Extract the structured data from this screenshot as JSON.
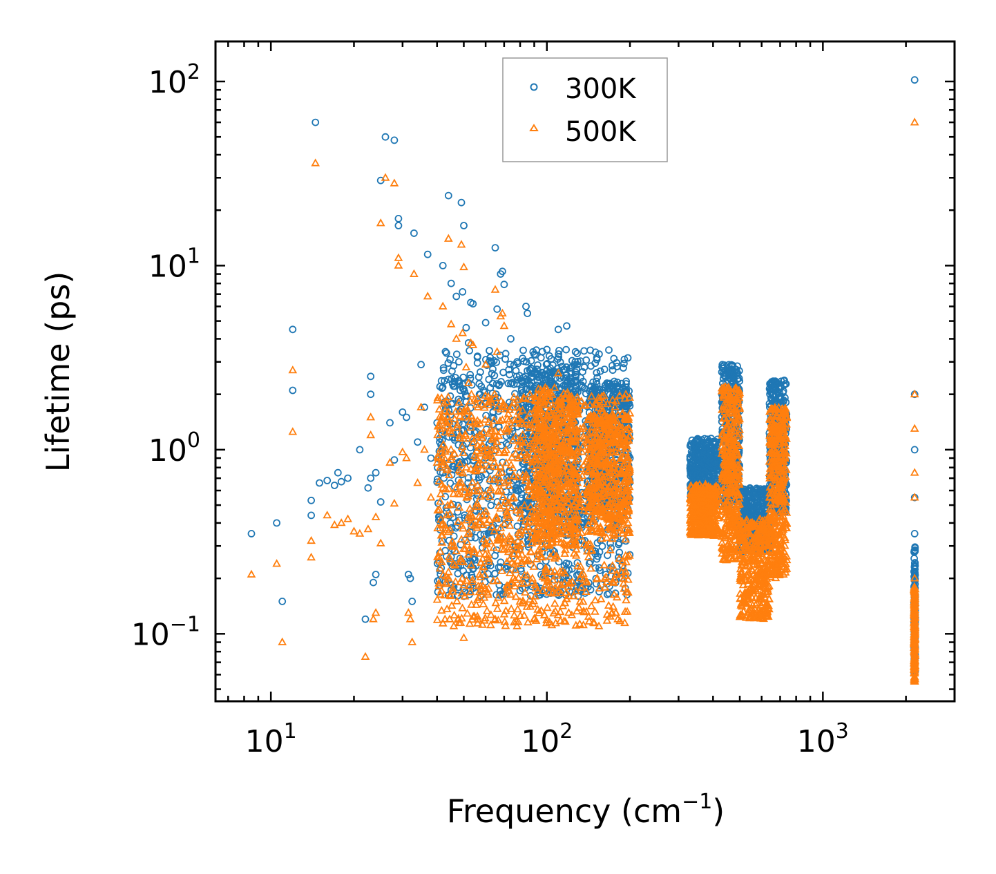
{
  "chart_data": {
    "type": "scatter",
    "title": "",
    "xlabel": "Frequency (cm",
    "xlabel_sup": "−1",
    "xlabel_end": ")",
    "ylabel": "Lifetime (ps)",
    "xscale": "log",
    "yscale": "log",
    "xlim": [
      6.3,
      3000
    ],
    "ylim": [
      0.043,
      165
    ],
    "x_ticks": [
      {
        "base": "10",
        "exp": "1",
        "value": 10
      },
      {
        "base": "10",
        "exp": "2",
        "value": 100
      },
      {
        "base": "10",
        "exp": "3",
        "value": 1000
      }
    ],
    "y_ticks": [
      {
        "base": "10",
        "exp": "2",
        "value": 100
      },
      {
        "base": "10",
        "exp": "1",
        "value": 10
      },
      {
        "base": "10",
        "exp": "0",
        "value": 1
      },
      {
        "base": "10",
        "exp": "−1",
        "value": 0.1
      }
    ],
    "legend": {
      "placement": "top-center"
    },
    "series": [
      {
        "name": "300K",
        "marker": "circle",
        "color": "#1f77b4",
        "points": [
          [
            8.5,
            0.35
          ],
          [
            10.5,
            0.4
          ],
          [
            11,
            0.15
          ],
          [
            12,
            4.5
          ],
          [
            12,
            2.1
          ],
          [
            14,
            0.53
          ],
          [
            14,
            0.44
          ],
          [
            14.5,
            60
          ],
          [
            15,
            0.66
          ],
          [
            16,
            0.68
          ],
          [
            17,
            0.64
          ],
          [
            17.5,
            0.75
          ],
          [
            18,
            0.67
          ],
          [
            19,
            0.7
          ],
          [
            21,
            1.0
          ],
          [
            22,
            0.12
          ],
          [
            22.5,
            0.62
          ],
          [
            23,
            2.5
          ],
          [
            23,
            2.0
          ],
          [
            23,
            0.7
          ],
          [
            23.5,
            0.19
          ],
          [
            24,
            0.21
          ],
          [
            24,
            0.75
          ],
          [
            25,
            0.52
          ],
          [
            25,
            29
          ],
          [
            26,
            50
          ],
          [
            27,
            1.4
          ],
          [
            28,
            48
          ],
          [
            28,
            0.88
          ],
          [
            29,
            18
          ],
          [
            29,
            16.5
          ],
          [
            30,
            1.6
          ],
          [
            31,
            1.5
          ],
          [
            31.5,
            0.21
          ],
          [
            32,
            0.2
          ],
          [
            32.5,
            0.15
          ],
          [
            33,
            15
          ],
          [
            34,
            1.1
          ],
          [
            35,
            2.9
          ],
          [
            36,
            1.7
          ],
          [
            37,
            11.5
          ],
          [
            38,
            0.9
          ],
          [
            40,
            1.4
          ],
          [
            41,
            2.2
          ],
          [
            42,
            10
          ],
          [
            44,
            24
          ],
          [
            45,
            8
          ],
          [
            46,
            0.18
          ],
          [
            47,
            6.8
          ],
          [
            48,
            3.0
          ],
          [
            49,
            22
          ],
          [
            49.5,
            7.2
          ],
          [
            50,
            0.16
          ],
          [
            50,
            16.5
          ],
          [
            51,
            4.6
          ],
          [
            52,
            3.8
          ],
          [
            53,
            6.3
          ],
          [
            54,
            6.2
          ],
          [
            57,
            2.0
          ],
          [
            60,
            4.9
          ],
          [
            63,
            3.0
          ],
          [
            65,
            12.5
          ],
          [
            66,
            5.8
          ],
          [
            68,
            9.0
          ],
          [
            69,
            9.3
          ],
          [
            70,
            7.9
          ],
          [
            74,
            4.0
          ],
          [
            78,
            3.0
          ],
          [
            80,
            0.75
          ],
          [
            84,
            6.0
          ],
          [
            85,
            5.5
          ],
          [
            90,
            3.3
          ],
          [
            100,
            3.5
          ],
          [
            110,
            4.5
          ],
          [
            118,
            4.7
          ],
          [
            135,
            2.2
          ],
          [
            150,
            1.9
          ],
          [
            165,
            2.3
          ],
          [
            180,
            2.0
          ],
          [
            190,
            0.8
          ],
          [
            200,
            0.9
          ],
          [
            2150,
            102
          ],
          [
            2150,
            2.0
          ],
          [
            2150,
            1.0
          ],
          [
            2150,
            0.55
          ],
          [
            2150,
            0.35
          ],
          [
            2150,
            0.2
          ],
          [
            2150,
            0.1
          ]
        ],
        "bands": [
          {
            "x": [
              40,
              200
            ],
            "y": [
              0.16,
              3.5
            ],
            "n": 1100
          },
          {
            "x": [
              80,
              130
            ],
            "y": [
              0.4,
              2.8
            ],
            "n": 450
          },
          {
            "x": [
              140,
              200
            ],
            "y": [
              0.5,
              2.3
            ],
            "n": 350
          },
          {
            "x": [
              330,
              420
            ],
            "y": [
              0.55,
              1.15
            ],
            "n": 380
          },
          {
            "x": [
              430,
              500
            ],
            "y": [
              0.5,
              2.9
            ],
            "n": 380
          },
          {
            "x": [
              500,
              640
            ],
            "y": [
              0.28,
              0.62
            ],
            "n": 380
          },
          {
            "x": [
              640,
              740
            ],
            "y": [
              0.45,
              2.4
            ],
            "n": 380
          },
          {
            "x": [
              2140,
              2160
            ],
            "y": [
              0.06,
              0.3
            ],
            "n": 160
          }
        ]
      },
      {
        "name": "500K",
        "marker": "triangle",
        "color": "#ff7f0e",
        "points": [
          [
            8.5,
            0.21
          ],
          [
            10.5,
            0.24
          ],
          [
            11,
            0.09
          ],
          [
            12,
            2.7
          ],
          [
            12,
            1.25
          ],
          [
            14,
            0.32
          ],
          [
            14,
            0.26
          ],
          [
            14.5,
            36
          ],
          [
            16,
            0.44
          ],
          [
            17,
            0.39
          ],
          [
            18,
            0.4
          ],
          [
            19,
            0.42
          ],
          [
            20,
            0.36
          ],
          [
            21,
            0.35
          ],
          [
            22,
            0.075
          ],
          [
            22.5,
            0.37
          ],
          [
            23,
            1.5
          ],
          [
            23,
            1.2
          ],
          [
            23.5,
            0.12
          ],
          [
            24,
            0.13
          ],
          [
            24,
            0.43
          ],
          [
            25,
            0.31
          ],
          [
            25,
            17
          ],
          [
            26,
            30
          ],
          [
            27,
            0.85
          ],
          [
            28,
            28
          ],
          [
            28,
            0.51
          ],
          [
            29,
            11
          ],
          [
            29,
            10
          ],
          [
            30,
            0.97
          ],
          [
            31,
            0.9
          ],
          [
            31.5,
            0.13
          ],
          [
            32,
            0.12
          ],
          [
            32.5,
            0.09
          ],
          [
            33,
            9
          ],
          [
            34,
            0.66
          ],
          [
            35,
            1.7
          ],
          [
            36,
            1.0
          ],
          [
            37,
            6.8
          ],
          [
            38,
            0.55
          ],
          [
            40,
            0.85
          ],
          [
            41,
            1.3
          ],
          [
            42,
            6
          ],
          [
            44,
            14
          ],
          [
            45,
            4.8
          ],
          [
            46,
            0.11
          ],
          [
            47,
            4
          ],
          [
            48,
            1.8
          ],
          [
            49,
            13
          ],
          [
            49.5,
            4.3
          ],
          [
            50,
            0.095
          ],
          [
            50,
            9.8
          ],
          [
            51,
            2.8
          ],
          [
            52,
            2.3
          ],
          [
            53,
            3.8
          ],
          [
            54,
            3.7
          ],
          [
            57,
            1.2
          ],
          [
            60,
            2.9
          ],
          [
            63,
            1.8
          ],
          [
            65,
            7.4
          ],
          [
            66,
            3.4
          ],
          [
            68,
            5.3
          ],
          [
            69,
            5.5
          ],
          [
            70,
            4.7
          ],
          [
            78,
            0.11
          ],
          [
            80,
            0.45
          ],
          [
            90,
            0.12
          ],
          [
            100,
            2.0
          ],
          [
            110,
            2.6
          ],
          [
            120,
            0.13
          ],
          [
            135,
            1.3
          ],
          [
            150,
            1.1
          ],
          [
            165,
            1.35
          ],
          [
            190,
            0.5
          ],
          [
            2150,
            60
          ],
          [
            2150,
            2.0
          ],
          [
            2150,
            1.3
          ],
          [
            2150,
            0.75
          ],
          [
            2150,
            0.55
          ],
          [
            2150,
            0.2
          ],
          [
            2150,
            0.055
          ]
        ],
        "bands": [
          {
            "x": [
              40,
              200
            ],
            "y": [
              0.11,
              2.0
            ],
            "n": 1100
          },
          {
            "x": [
              90,
              130
            ],
            "y": [
              0.3,
              2.2
            ],
            "n": 450
          },
          {
            "x": [
              140,
              200
            ],
            "y": [
              0.35,
              1.6
            ],
            "n": 350
          },
          {
            "x": [
              330,
              420
            ],
            "y": [
              0.34,
              0.65
            ],
            "n": 380
          },
          {
            "x": [
              430,
              500
            ],
            "y": [
              0.25,
              2.2
            ],
            "n": 380
          },
          {
            "x": [
              500,
              640
            ],
            "y": [
              0.12,
              0.42
            ],
            "n": 380
          },
          {
            "x": [
              640,
              740
            ],
            "y": [
              0.2,
              1.7
            ],
            "n": 380
          },
          {
            "x": [
              2140,
              2160
            ],
            "y": [
              0.055,
              0.18
            ],
            "n": 160
          }
        ]
      }
    ]
  }
}
